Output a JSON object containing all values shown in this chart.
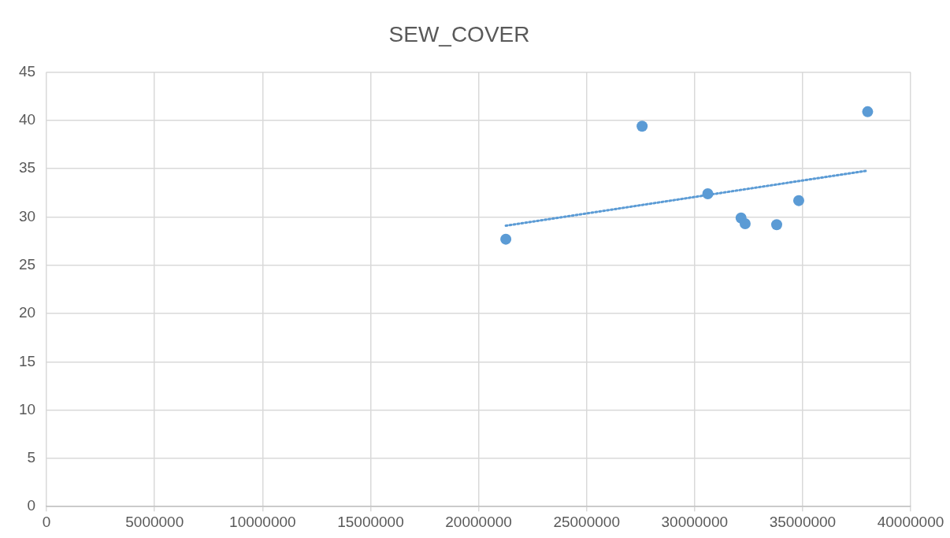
{
  "chart_data": {
    "type": "scatter",
    "title": "SEW_COVER",
    "series": [
      {
        "type": "scatter",
        "color": "#5b9bd5",
        "marker": "circle",
        "x": [
          21260000,
          27570000,
          30610000,
          32150000,
          32340000,
          33800000,
          34820000,
          38010000
        ],
        "values": [
          27.7,
          39.4,
          32.4,
          29.9,
          29.3,
          29.2,
          31.7,
          40.9
        ]
      },
      {
        "type": "line",
        "color": "#5b9bd5",
        "marker": "none",
        "line_style": "dotted",
        "x": [
          21260000,
          38010000
        ],
        "values": [
          29.1,
          34.8
        ]
      }
    ],
    "xlim": [
      0,
      40000000
    ],
    "xticks": [
      0,
      5000000,
      10000000,
      15000000,
      20000000,
      25000000,
      30000000,
      35000000,
      40000000
    ],
    "ylim": [
      0,
      45
    ],
    "yticks": [
      0,
      5,
      10,
      15,
      20,
      25,
      30,
      35,
      40,
      45
    ],
    "grid": true,
    "legend": false
  }
}
